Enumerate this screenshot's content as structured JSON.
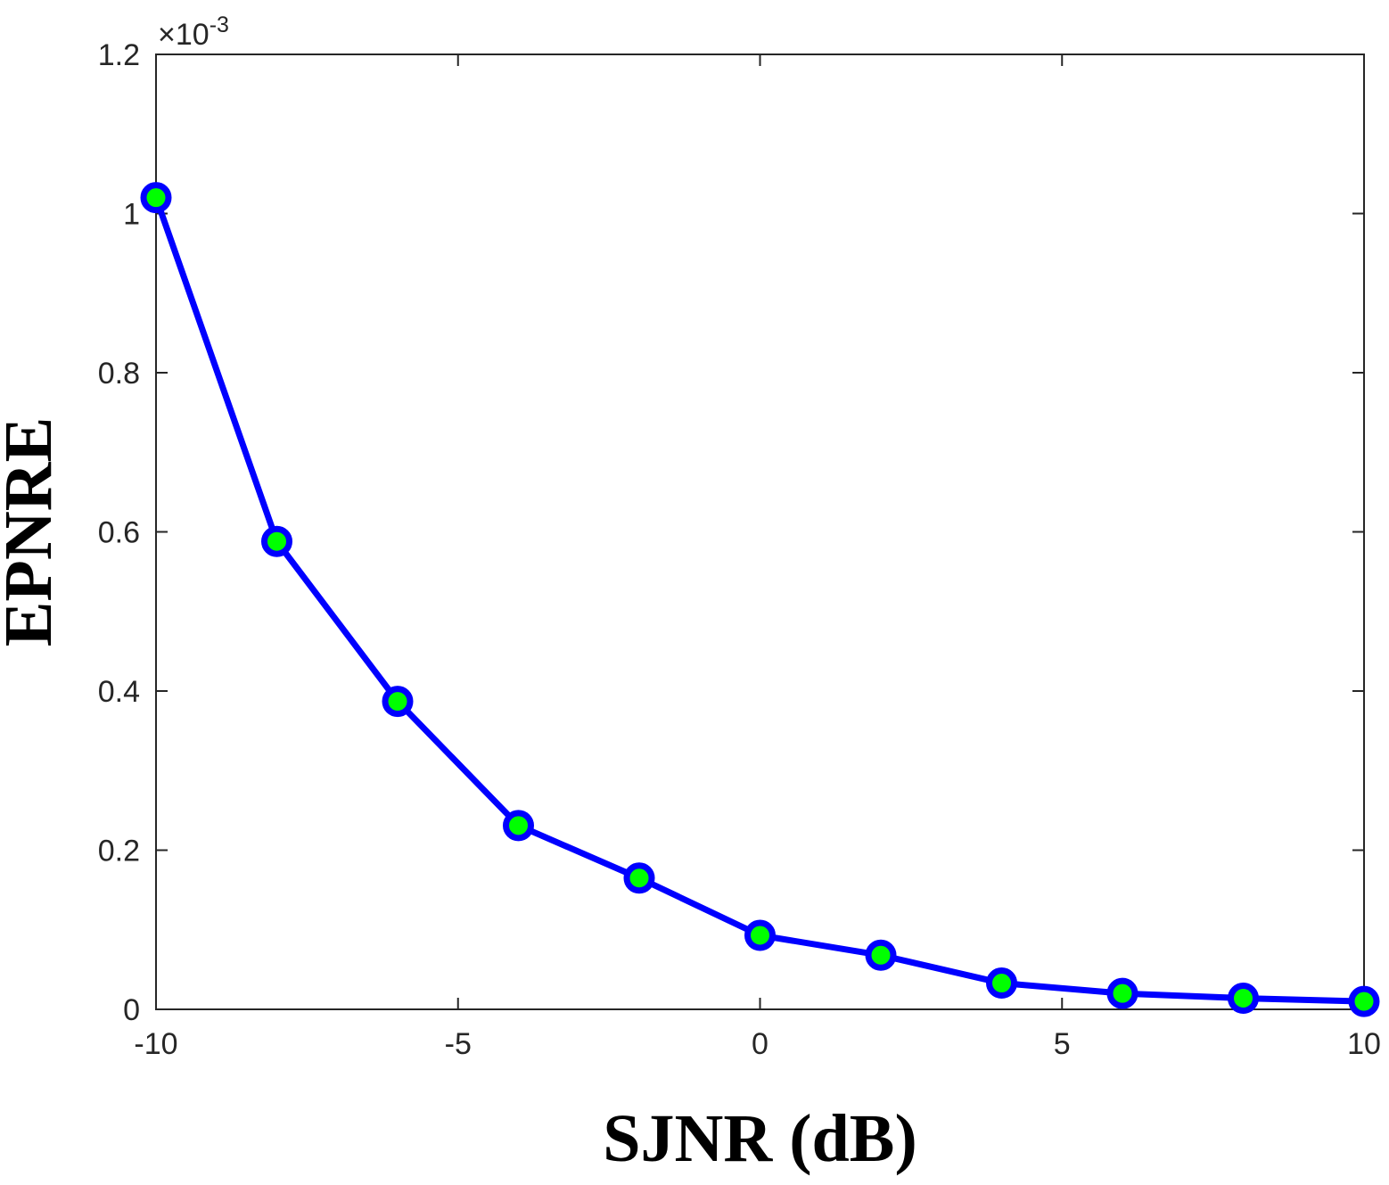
{
  "chart_data": {
    "type": "line",
    "xlabel": "SJNR (dB)",
    "ylabel": "EPNRE",
    "xlim": [
      -10,
      10
    ],
    "ylim": [
      0,
      0.0012
    ],
    "y_exponent_label": {
      "times": "×10",
      "power": "-3"
    },
    "x_ticks": [
      {
        "value": -10,
        "label": "-10"
      },
      {
        "value": -5,
        "label": "-5"
      },
      {
        "value": 0,
        "label": "0"
      },
      {
        "value": 5,
        "label": "5"
      },
      {
        "value": 10,
        "label": "10"
      }
    ],
    "y_ticks": [
      {
        "value": 0,
        "label": "0"
      },
      {
        "value": 0.0002,
        "label": "0.2"
      },
      {
        "value": 0.0004,
        "label": "0.4"
      },
      {
        "value": 0.0006,
        "label": "0.6"
      },
      {
        "value": 0.0008,
        "label": "0.8"
      },
      {
        "value": 0.001,
        "label": "1"
      },
      {
        "value": 0.0012,
        "label": "1.2"
      }
    ],
    "grid": false,
    "series": [
      {
        "line_color": "#0000ff",
        "marker_face": "#00ff00",
        "marker_edge": "#0000ff",
        "x": [
          -10,
          -8,
          -6,
          -4,
          -2,
          0,
          2,
          4,
          6,
          8,
          10
        ],
        "y": [
          0.00102,
          0.000588,
          0.000387,
          0.000231,
          0.000165,
          9.3e-05,
          6.8e-05,
          3.3e-05,
          2e-05,
          1.4e-05,
          1e-05
        ]
      }
    ]
  }
}
